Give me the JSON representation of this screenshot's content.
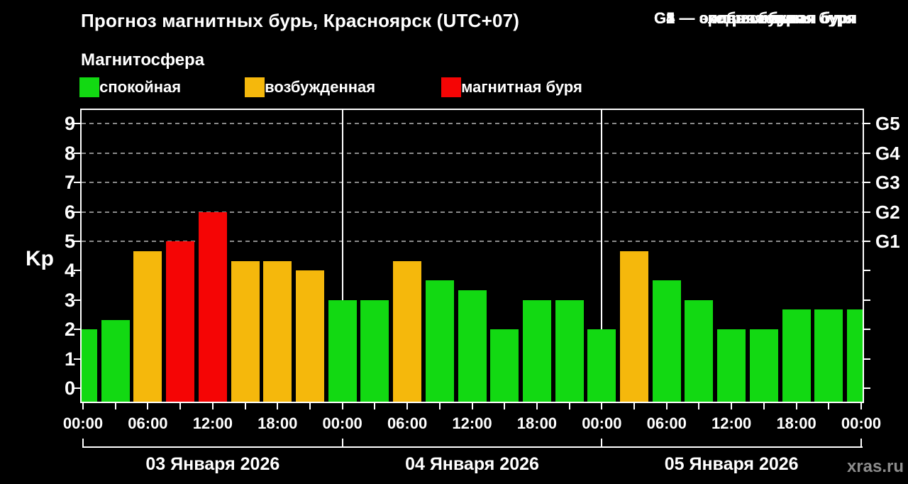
{
  "title": "Прогноз магнитных бурь, Красноярск (UTC+07)",
  "subtitle": "Магнитосфера",
  "legend": {
    "items": [
      {
        "status": "quiet",
        "label": "— спокойная"
      },
      {
        "status": "unsettled",
        "label": "— возбужденная"
      },
      {
        "status": "storm",
        "label": "— магнитная буря"
      }
    ]
  },
  "storm_scale_legend": [
    "G1 — слабая буря",
    "G2 — средняя буря",
    "G3 — сильная буря",
    "G4 — очень сильная буря",
    "G5 — экстремальная буря"
  ],
  "watermark": "xras.ru",
  "chart_data": {
    "type": "bar",
    "ylabel": "Kp",
    "ylim": [
      0,
      9
    ],
    "y_ticks": [
      0,
      1,
      2,
      3,
      4,
      5,
      6,
      7,
      8,
      9
    ],
    "grid": "dashed horizontal at Kp 5-9",
    "right_axis_labels": [
      {
        "kp": 5,
        "label": "G1"
      },
      {
        "kp": 6,
        "label": "G2"
      },
      {
        "kp": 7,
        "label": "G3"
      },
      {
        "kp": 8,
        "label": "G4"
      },
      {
        "kp": 9,
        "label": "G5"
      }
    ],
    "x_tick_labels": [
      {
        "hour": 0,
        "label": "00:00"
      },
      {
        "hour": 6,
        "label": "06:00"
      },
      {
        "hour": 12,
        "label": "12:00"
      },
      {
        "hour": 18,
        "label": "18:00"
      },
      {
        "hour": 24,
        "label": "00:00"
      },
      {
        "hour": 30,
        "label": "06:00"
      },
      {
        "hour": 36,
        "label": "12:00"
      },
      {
        "hour": 42,
        "label": "18:00"
      },
      {
        "hour": 48,
        "label": "00:00"
      },
      {
        "hour": 54,
        "label": "06:00"
      },
      {
        "hour": 60,
        "label": "12:00"
      },
      {
        "hour": 66,
        "label": "18:00"
      },
      {
        "hour": 72,
        "label": "00:00"
      }
    ],
    "days": [
      {
        "label": "03 Января 2026"
      },
      {
        "label": "04 Января 2026"
      },
      {
        "label": "05 Января 2026"
      }
    ],
    "status_colors": {
      "quiet": "#12d912",
      "unsettled": "#f5b80c",
      "storm": "#f50505"
    },
    "bars": [
      {
        "hour": 0,
        "kp": 2.0,
        "status": "quiet"
      },
      {
        "hour": 3,
        "kp": 2.33,
        "status": "quiet"
      },
      {
        "hour": 6,
        "kp": 4.67,
        "status": "unsettled"
      },
      {
        "hour": 9,
        "kp": 5.0,
        "status": "storm"
      },
      {
        "hour": 12,
        "kp": 6.0,
        "status": "storm"
      },
      {
        "hour": 15,
        "kp": 4.33,
        "status": "unsettled"
      },
      {
        "hour": 18,
        "kp": 4.33,
        "status": "unsettled"
      },
      {
        "hour": 21,
        "kp": 4.0,
        "status": "unsettled"
      },
      {
        "hour": 24,
        "kp": 3.0,
        "status": "quiet"
      },
      {
        "hour": 27,
        "kp": 3.0,
        "status": "quiet"
      },
      {
        "hour": 30,
        "kp": 4.33,
        "status": "unsettled"
      },
      {
        "hour": 33,
        "kp": 3.67,
        "status": "quiet"
      },
      {
        "hour": 36,
        "kp": 3.33,
        "status": "quiet"
      },
      {
        "hour": 39,
        "kp": 2.0,
        "status": "quiet"
      },
      {
        "hour": 42,
        "kp": 3.0,
        "status": "quiet"
      },
      {
        "hour": 45,
        "kp": 3.0,
        "status": "quiet"
      },
      {
        "hour": 48,
        "kp": 2.0,
        "status": "quiet"
      },
      {
        "hour": 51,
        "kp": 4.67,
        "status": "unsettled"
      },
      {
        "hour": 54,
        "kp": 3.67,
        "status": "quiet"
      },
      {
        "hour": 57,
        "kp": 3.0,
        "status": "quiet"
      },
      {
        "hour": 60,
        "kp": 2.0,
        "status": "quiet"
      },
      {
        "hour": 63,
        "kp": 2.0,
        "status": "quiet"
      },
      {
        "hour": 66,
        "kp": 2.67,
        "status": "quiet"
      },
      {
        "hour": 69,
        "kp": 2.67,
        "status": "quiet"
      },
      {
        "hour": 72,
        "kp": 2.67,
        "status": "quiet"
      }
    ]
  }
}
